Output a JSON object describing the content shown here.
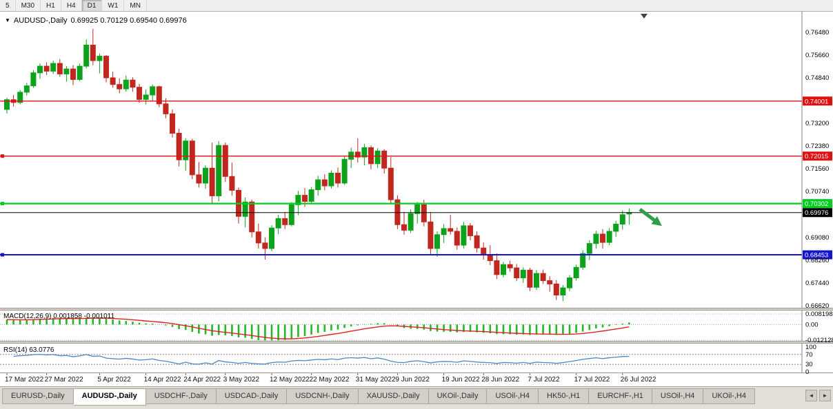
{
  "toolbar": {
    "timeframes": [
      {
        "label": "5",
        "active": false
      },
      {
        "label": "M30",
        "active": false
      },
      {
        "label": "H1",
        "active": false
      },
      {
        "label": "H4",
        "active": false
      },
      {
        "label": "D1",
        "active": true
      },
      {
        "label": "W1",
        "active": false
      },
      {
        "label": "MN",
        "active": false
      }
    ]
  },
  "chart": {
    "title": "AUDUSD-,Daily",
    "ohlc_text": "0.69925 0.70129 0.69540 0.69976",
    "dropdown_icon": "▼",
    "price_axis_labels": [
      "0.76480",
      "0.75660",
      "0.74840",
      "0.73200",
      "0.72380",
      "0.71560",
      "0.70740",
      "0.69080",
      "0.68260",
      "0.67440",
      "0.66620"
    ],
    "lines": [
      {
        "price": 0.74001,
        "label": "0.74001",
        "color": "#e01010",
        "width": 1.4,
        "text_color": "#ffffff",
        "handle": false
      },
      {
        "price": 0.72015,
        "label": "0.72015",
        "color": "#e01010",
        "width": 1.4,
        "text_color": "#ffffff",
        "handle": true
      },
      {
        "price": 0.70302,
        "label": "0.70302",
        "color": "#00cc22",
        "width": 2.2,
        "text_color": "#ffffff",
        "handle": true
      },
      {
        "price": 0.69976,
        "label": "0.69976",
        "color": "#000000",
        "width": 1,
        "text_color": "#ffffff",
        "handle": false
      },
      {
        "price": 0.68453,
        "label": "0.68453",
        "color": "#1414cc",
        "width": 2,
        "text_color": "#ffffff",
        "handle": true
      }
    ],
    "bull_color": "#0ca21c",
    "bear_color": "#c0271e",
    "arrow_color": "#2f9e44"
  },
  "macd_panel": {
    "label": "MACD(12,26,9) 0.001858 -0.001011",
    "axis_labels": [
      {
        "value": 0.008198,
        "text": "0.008198"
      },
      {
        "value": 0,
        "text": "0.00"
      },
      {
        "value": -0.012128,
        "text": "-0.012128"
      }
    ],
    "histogram_color": "#25b825",
    "signal_color": "#e02020"
  },
  "rsi_panel": {
    "label": "RSI(14) 63.0776",
    "axis_labels": [
      {
        "value": 100,
        "text": "100"
      },
      {
        "value": 70,
        "text": "70"
      },
      {
        "value": 30,
        "text": "30"
      },
      {
        "value": 0,
        "text": "0"
      }
    ],
    "levels": [
      70,
      30
    ],
    "line_color": "#4a86c8"
  },
  "date_axis": [
    {
      "label": "17 Mar 2022",
      "i": 0
    },
    {
      "label": "27 Mar 2022",
      "i": 6
    },
    {
      "label": "5 Apr 2022",
      "i": 14
    },
    {
      "label": "14 Apr 2022",
      "i": 21
    },
    {
      "label": "24 Apr 2022",
      "i": 27
    },
    {
      "label": "3 May 2022",
      "i": 33
    },
    {
      "label": "12 May 2022",
      "i": 40
    },
    {
      "label": "22 May 2022",
      "i": 46
    },
    {
      "label": "31 May 2022",
      "i": 53
    },
    {
      "label": "9 Jun 2022",
      "i": 59
    },
    {
      "label": "19 Jun 2022",
      "i": 66
    },
    {
      "label": "28 Jun 2022",
      "i": 72
    },
    {
      "label": "7 Jul 2022",
      "i": 79
    },
    {
      "label": "17 Jul 2022",
      "i": 86
    },
    {
      "label": "26 Jul 2022",
      "i": 93
    }
  ],
  "bottom_tabs": {
    "items": [
      {
        "label": "EURUSD-,Daily",
        "active": false
      },
      {
        "label": "AUDUSD-,Daily",
        "active": true
      },
      {
        "label": "USDCHF-,Daily",
        "active": false
      },
      {
        "label": "USDCAD-,Daily",
        "active": false
      },
      {
        "label": "USDCNH-,Daily",
        "active": false
      },
      {
        "label": "XAUUSD-,Daily",
        "active": false
      },
      {
        "label": "UKOil-,Daily",
        "active": false
      },
      {
        "label": "USOil-,H4",
        "active": false
      },
      {
        "label": "HK50-,H1",
        "active": false
      },
      {
        "label": "EURCHF-,H1",
        "active": false
      },
      {
        "label": "USOil-,H4",
        "active": false
      },
      {
        "label": "UKOil-,H4",
        "active": false
      }
    ],
    "nav_left": "◄",
    "nav_right": "►"
  },
  "chart_data": {
    "type": "candlestick",
    "symbol": "AUDUSD",
    "timeframe": "Daily",
    "current": {
      "open": 0.69925,
      "high": 0.70129,
      "low": 0.6954,
      "close": 0.69976
    },
    "y_axis_range": [
      0.6654,
      0.7723
    ],
    "ohlc": [
      [
        0.737,
        0.7412,
        0.7355,
        0.7405
      ],
      [
        0.7405,
        0.7422,
        0.738,
        0.7395
      ],
      [
        0.7395,
        0.744,
        0.7388,
        0.7432
      ],
      [
        0.7432,
        0.7466,
        0.742,
        0.7455
      ],
      [
        0.7455,
        0.7512,
        0.7448,
        0.7502
      ],
      [
        0.7502,
        0.7536,
        0.748,
        0.7526
      ],
      [
        0.7526,
        0.754,
        0.7494,
        0.7508
      ],
      [
        0.7508,
        0.7546,
        0.7498,
        0.7536
      ],
      [
        0.7536,
        0.7552,
        0.7488,
        0.7498
      ],
      [
        0.7498,
        0.7526,
        0.747,
        0.7516
      ],
      [
        0.7516,
        0.753,
        0.7458,
        0.7478
      ],
      [
        0.7478,
        0.7536,
        0.7472,
        0.7526
      ],
      [
        0.7526,
        0.7622,
        0.7518,
        0.7602
      ],
      [
        0.7602,
        0.7661,
        0.753,
        0.7546
      ],
      [
        0.7546,
        0.7572,
        0.75,
        0.7562
      ],
      [
        0.7562,
        0.7566,
        0.7468,
        0.7484
      ],
      [
        0.7484,
        0.7506,
        0.7448,
        0.746
      ],
      [
        0.746,
        0.7482,
        0.7428,
        0.7444
      ],
      [
        0.7444,
        0.7492,
        0.7434,
        0.7476
      ],
      [
        0.7476,
        0.7486,
        0.7434,
        0.745
      ],
      [
        0.745,
        0.7462,
        0.7394,
        0.7406
      ],
      [
        0.7406,
        0.7442,
        0.7388,
        0.7422
      ],
      [
        0.7422,
        0.746,
        0.74,
        0.7452
      ],
      [
        0.7452,
        0.7456,
        0.7378,
        0.739
      ],
      [
        0.739,
        0.741,
        0.7338,
        0.7354
      ],
      [
        0.7354,
        0.737,
        0.7268,
        0.7284
      ],
      [
        0.7284,
        0.73,
        0.7164,
        0.7188
      ],
      [
        0.7188,
        0.7266,
        0.7148,
        0.7256
      ],
      [
        0.7256,
        0.7264,
        0.7118,
        0.7134
      ],
      [
        0.7134,
        0.718,
        0.7088,
        0.7104
      ],
      [
        0.7104,
        0.7168,
        0.7084,
        0.7158
      ],
      [
        0.7158,
        0.725,
        0.7028,
        0.7058
      ],
      [
        0.7058,
        0.7256,
        0.7038,
        0.724
      ],
      [
        0.724,
        0.725,
        0.7108,
        0.7128
      ],
      [
        0.7128,
        0.7178,
        0.7058,
        0.7078
      ],
      [
        0.7078,
        0.7088,
        0.6958,
        0.6984
      ],
      [
        0.6984,
        0.7052,
        0.6944,
        0.7036
      ],
      [
        0.7036,
        0.7044,
        0.6908,
        0.6928
      ],
      [
        0.6928,
        0.6958,
        0.6868,
        0.6888
      ],
      [
        0.6888,
        0.6908,
        0.6828,
        0.6868
      ],
      [
        0.6868,
        0.6952,
        0.6858,
        0.6942
      ],
      [
        0.6942,
        0.699,
        0.692,
        0.6976
      ],
      [
        0.6976,
        0.7,
        0.6938,
        0.6954
      ],
      [
        0.6954,
        0.7036,
        0.6948,
        0.7026
      ],
      [
        0.7026,
        0.7076,
        0.6988,
        0.706
      ],
      [
        0.706,
        0.7086,
        0.7018,
        0.7038
      ],
      [
        0.7038,
        0.709,
        0.7028,
        0.708
      ],
      [
        0.708,
        0.713,
        0.7058,
        0.7116
      ],
      [
        0.7116,
        0.7136,
        0.7078,
        0.7094
      ],
      [
        0.7094,
        0.715,
        0.7084,
        0.714
      ],
      [
        0.714,
        0.716,
        0.7088,
        0.7104
      ],
      [
        0.7104,
        0.72,
        0.7098,
        0.719
      ],
      [
        0.719,
        0.7232,
        0.7158,
        0.7216
      ],
      [
        0.7216,
        0.7266,
        0.7178,
        0.7198
      ],
      [
        0.7198,
        0.7246,
        0.7168,
        0.7232
      ],
      [
        0.7232,
        0.724,
        0.7154,
        0.7174
      ],
      [
        0.7174,
        0.723,
        0.7158,
        0.722
      ],
      [
        0.722,
        0.7226,
        0.7138,
        0.7158
      ],
      [
        0.7158,
        0.7198,
        0.7028,
        0.7044
      ],
      [
        0.7044,
        0.706,
        0.6938,
        0.6954
      ],
      [
        0.6954,
        0.7,
        0.6918,
        0.6934
      ],
      [
        0.6934,
        0.701,
        0.6924,
        0.6994
      ],
      [
        0.6994,
        0.7036,
        0.6958,
        0.7026
      ],
      [
        0.7026,
        0.7044,
        0.6948,
        0.6964
      ],
      [
        0.6964,
        0.7,
        0.6848,
        0.6868
      ],
      [
        0.6868,
        0.693,
        0.6838,
        0.6918
      ],
      [
        0.6918,
        0.6956,
        0.6888,
        0.694
      ],
      [
        0.694,
        0.699,
        0.6918,
        0.693
      ],
      [
        0.693,
        0.6944,
        0.6864,
        0.688
      ],
      [
        0.688,
        0.6964,
        0.6868,
        0.695
      ],
      [
        0.695,
        0.696,
        0.6898,
        0.6914
      ],
      [
        0.6914,
        0.693,
        0.6854,
        0.687
      ],
      [
        0.687,
        0.689,
        0.6828,
        0.6844
      ],
      [
        0.6844,
        0.688,
        0.6808,
        0.6824
      ],
      [
        0.6824,
        0.685,
        0.6758,
        0.6774
      ],
      [
        0.6774,
        0.682,
        0.6764,
        0.681
      ],
      [
        0.681,
        0.6824,
        0.6784,
        0.6798
      ],
      [
        0.6798,
        0.6812,
        0.675,
        0.6762
      ],
      [
        0.6762,
        0.68,
        0.6744,
        0.679
      ],
      [
        0.679,
        0.6798,
        0.6714,
        0.6728
      ],
      [
        0.6728,
        0.679,
        0.6718,
        0.6778
      ],
      [
        0.6778,
        0.6792,
        0.674,
        0.6752
      ],
      [
        0.6752,
        0.6768,
        0.6712,
        0.674
      ],
      [
        0.674,
        0.6754,
        0.6682,
        0.67
      ],
      [
        0.67,
        0.6736,
        0.6678,
        0.6726
      ],
      [
        0.6726,
        0.6772,
        0.6714,
        0.6762
      ],
      [
        0.6762,
        0.681,
        0.6752,
        0.68
      ],
      [
        0.68,
        0.6862,
        0.679,
        0.685
      ],
      [
        0.685,
        0.6898,
        0.6826,
        0.6886
      ],
      [
        0.6886,
        0.6932,
        0.6868,
        0.692
      ],
      [
        0.692,
        0.6938,
        0.6868,
        0.689
      ],
      [
        0.689,
        0.6942,
        0.688,
        0.693
      ],
      [
        0.693,
        0.6968,
        0.691,
        0.6956
      ],
      [
        0.6956,
        0.7005,
        0.6936,
        0.699
      ],
      [
        0.69925,
        0.70129,
        0.6954,
        0.69976
      ]
    ]
  }
}
